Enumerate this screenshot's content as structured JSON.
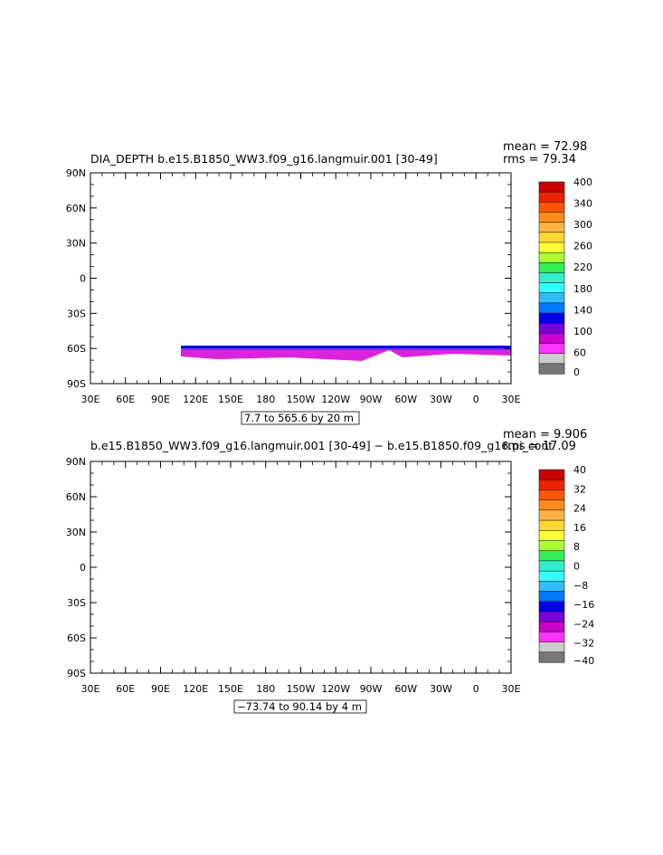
{
  "chart_data": [
    {
      "type": "heatmap",
      "title": "DIA_DEPTH b.e15.B1850_WW3.f09_g16.langmuir.001 [30-49]",
      "stats": {
        "mean": "mean = 72.98",
        "rms": "rms = 79.34"
      },
      "range_label": "7.7 to 565.6 by 20 m",
      "x_ticks": [
        "30E",
        "60E",
        "90E",
        "120E",
        "150E",
        "180",
        "150W",
        "120W",
        "90W",
        "60W",
        "30W",
        "0",
        "30E"
      ],
      "y_ticks": [
        "90N",
        "60N",
        "30N",
        "0",
        "30S",
        "60S",
        "90S"
      ],
      "colorbar_labels": [
        "400",
        "340",
        "300",
        "260",
        "220",
        "180",
        "140",
        "100",
        "60",
        "0"
      ],
      "colorbar_colors": [
        "#cc0000",
        "#ee2200",
        "#ff5500",
        "#ff8c1a",
        "#ffb347",
        "#ffd633",
        "#ffff33",
        "#aaff33",
        "#33ee55",
        "#33eecc",
        "#33ffff",
        "#33bbff",
        "#0077ff",
        "#0000ee",
        "#7700dd",
        "#cc00cc",
        "#ff33ff",
        "#cccccc",
        "#777777"
      ]
    },
    {
      "type": "heatmap",
      "title": "b.e15.B1850_WW3.f09_g16.langmuir.001 [30-49] − b.e15.B1850.f09_g16.pi_cont",
      "stats": {
        "mean": "mean = 9.906",
        "rms": "rms = 17.09"
      },
      "range_label": "−73.74 to 90.14 by 4 m",
      "x_ticks": [
        "30E",
        "60E",
        "90E",
        "120E",
        "150E",
        "180",
        "150W",
        "120W",
        "90W",
        "60W",
        "30W",
        "0",
        "30E"
      ],
      "y_ticks": [
        "90N",
        "60N",
        "30N",
        "0",
        "30S",
        "60S",
        "90S"
      ],
      "colorbar_labels": [
        "40",
        "32",
        "24",
        "16",
        "8",
        "0",
        "−8",
        "−16",
        "−24",
        "−32",
        "−40"
      ],
      "colorbar_colors": [
        "#cc0000",
        "#ee2200",
        "#ff5500",
        "#ff8c1a",
        "#ffb347",
        "#ffd633",
        "#ffff33",
        "#aaff33",
        "#33ee55",
        "#33eecc",
        "#33ffff",
        "#33bbff",
        "#0077ff",
        "#0000ee",
        "#7700dd",
        "#cc00cc",
        "#ff33ff",
        "#cccccc",
        "#777777"
      ]
    }
  ]
}
